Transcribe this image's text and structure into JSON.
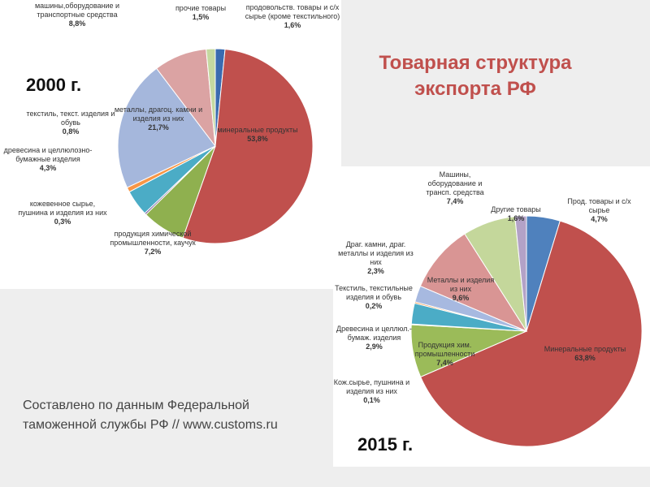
{
  "title": "Товарная структура экспорта РФ",
  "source": "Составлено по данным Федеральной таможенной службы РФ // www.customs.ru",
  "chart_data": [
    {
      "type": "pie",
      "title": "2000 г.",
      "categories": [
        "продовольств. товары и с/х сырье (кроме текстильного)",
        "минеральные продукты",
        "продукция химической промышленности, каучук",
        "кожевенное сырье, пушнина и изделия из них",
        "древесина и целлюлозно-бумажные изделия",
        "текстиль, текст. изделия и обувь",
        "металлы, драгоц. камни и изделия из них",
        "машины,оборудование и транспортные средства",
        "прочие товары"
      ],
      "values": [
        1.6,
        53.8,
        7.2,
        0.3,
        4.3,
        0.8,
        21.7,
        8.8,
        1.5
      ],
      "value_labels": [
        "1,6%",
        "53,8%",
        "7,2%",
        "0,3%",
        "4,3%",
        "0,8%",
        "21,7%",
        "8,8%",
        "1,5%"
      ],
      "colors": [
        "#3a6bb0",
        "#c0504d",
        "#8fb04f",
        "#7f63a0",
        "#4bacc6",
        "#f79646",
        "#a5b7dc",
        "#dba3a3",
        "#c5d9a0"
      ]
    },
    {
      "type": "pie",
      "title": "2015 г.",
      "categories": [
        "Прод. товары и с/х сырье",
        "Минеральные продукты",
        "Продукция хим. промышленности",
        "Кож.сырье, пушнина и изделия из них",
        "Древесина и целлюл.-бумаж. изделия",
        "Текстиль, текстильные изделия и обувь",
        "Драг. камни, драг. металлы и изделия из них",
        "Металлы и изделия из них",
        "Машины, оборудование и трансп. средства",
        "Другие товары"
      ],
      "values": [
        4.7,
        63.8,
        7.4,
        0.1,
        2.9,
        0.2,
        2.3,
        9.6,
        7.4,
        1.6
      ],
      "value_labels": [
        "4,7%",
        "63,8%",
        "7,4%",
        "0,1%",
        "2,9%",
        "0,2%",
        "2,3%",
        "9,6%",
        "7,4%",
        "1,6%"
      ],
      "colors": [
        "#4f81bd",
        "#c0504d",
        "#9bbb59",
        "#8064a2",
        "#4bacc6",
        "#f79646",
        "#a7b9e0",
        "#d99594",
        "#c4d79b",
        "#b3a2c7"
      ]
    }
  ]
}
